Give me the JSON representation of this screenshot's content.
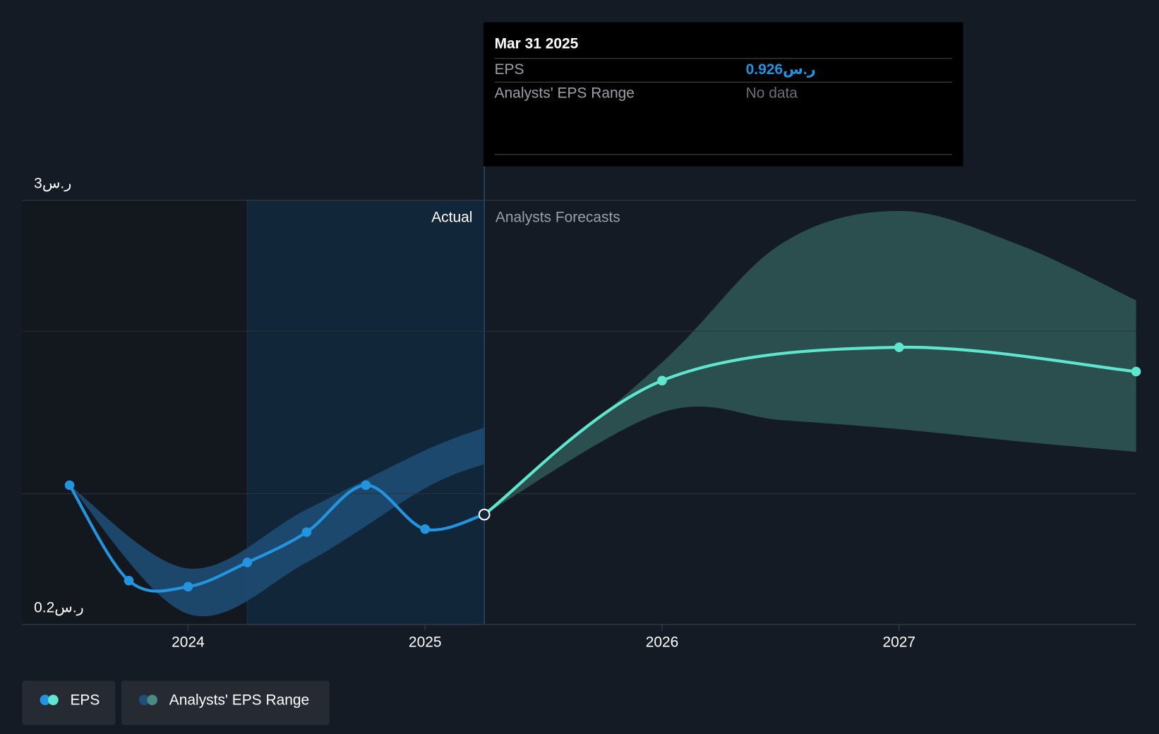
{
  "chart_data": {
    "type": "line",
    "xlim": [
      2023.3,
      2028
    ],
    "xticks": [
      2024,
      2025,
      2026,
      2027
    ],
    "ylim": [
      0.2,
      3
    ],
    "yticks": [
      {
        "value": 3,
        "label": "3ر.س"
      },
      {
        "value": 0.2,
        "label": "0.2ر.س"
      }
    ],
    "divider_x": 2025.25,
    "highlight_xlim": [
      2024.25,
      2025.25
    ],
    "actual_label": "Actual",
    "forecast_label": "Analysts Forecasts",
    "series": [
      {
        "name": "EPS",
        "color": "#2394df",
        "forecast_color": "#5ee6cf",
        "x": [
          2023.5,
          2023.75,
          2024,
          2024.25,
          2024.5,
          2024.75,
          2025,
          2025.25,
          2026,
          2027,
          2028
        ],
        "values": [
          1.12,
          0.49,
          0.45,
          0.61,
          0.81,
          1.12,
          0.83,
          0.926,
          1.81,
          2.03,
          1.87
        ]
      },
      {
        "name": "Analysts' EPS Range",
        "color": "#2e5553",
        "x": [
          2025.25,
          2026,
          2026.5,
          2027,
          2027.5,
          2028
        ],
        "low": [
          0.926,
          1.6,
          1.55,
          1.49,
          1.41,
          1.34
        ],
        "high": [
          0.926,
          1.93,
          2.71,
          2.93,
          2.71,
          2.34
        ]
      }
    ],
    "actual_range": {
      "color": "#1f4f78",
      "x": [
        2023.5,
        2024,
        2024.5,
        2025,
        2025.25
      ],
      "low": [
        1.12,
        0.27,
        0.61,
        1.1,
        1.26
      ],
      "high": [
        1.12,
        0.57,
        0.96,
        1.35,
        1.5
      ]
    },
    "tooltip": {
      "title": "Mar 31 2025",
      "rows": [
        {
          "label": "EPS",
          "value": "0.926ر.س"
        },
        {
          "label": "Analysts' EPS Range",
          "value": "No data"
        }
      ]
    }
  }
}
